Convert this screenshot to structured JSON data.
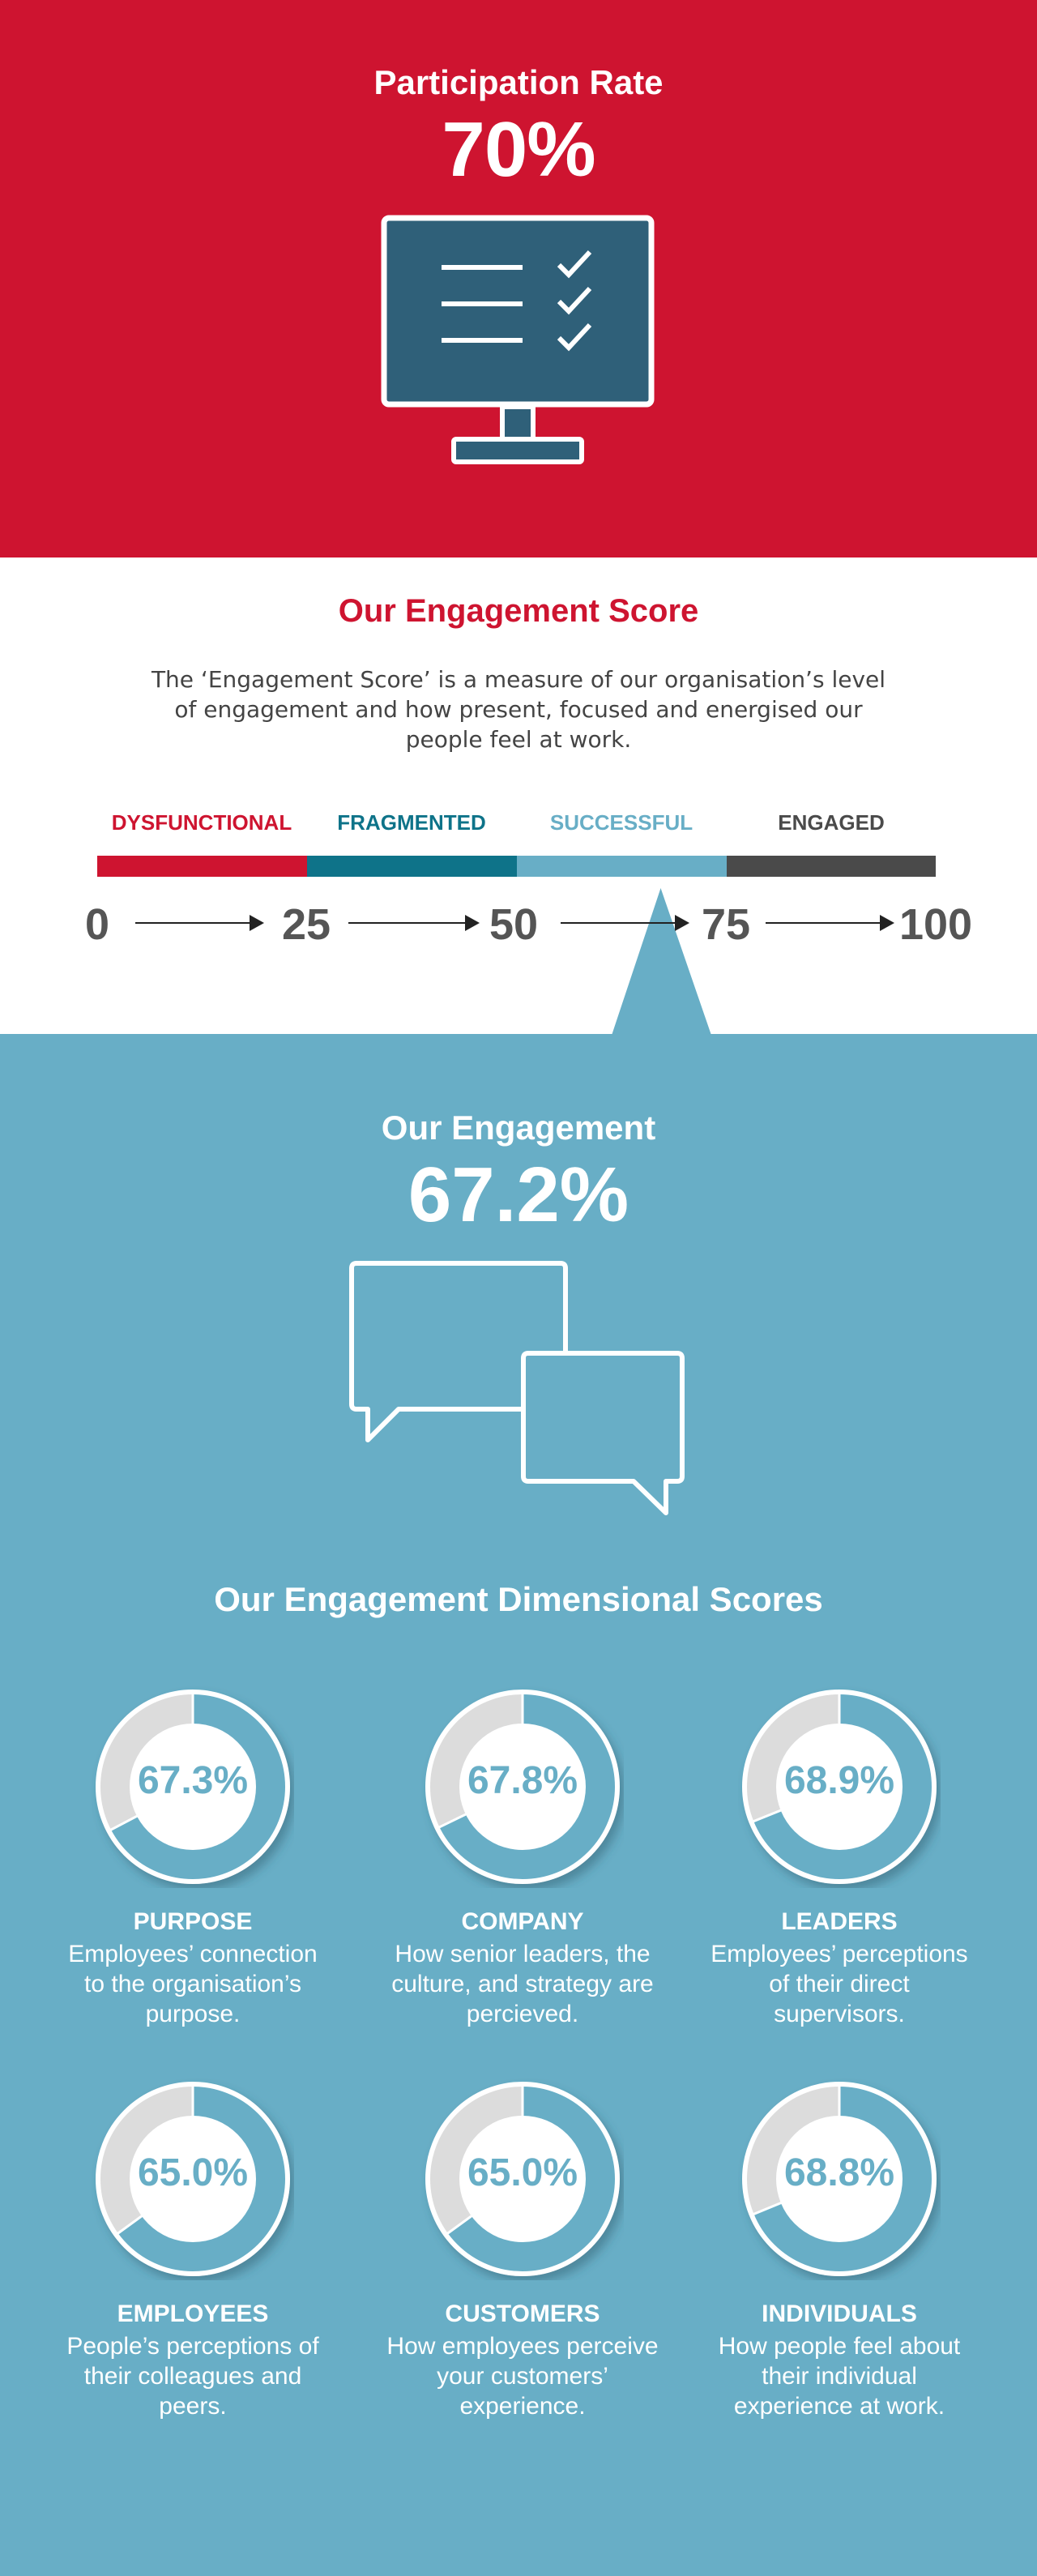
{
  "participation": {
    "title": "Participation Rate",
    "value": "70%",
    "icon": "checklist-monitor-icon"
  },
  "engagement_score": {
    "title": "Our Engagement Score",
    "description": "The ‘Engagement Score’ is a measure of our organisation’s level of engagement and how present, focused and energised our people feel at work.",
    "scale": [
      {
        "label": "DYSFUNCTIONAL",
        "color": "#CE1430"
      },
      {
        "label": "FRAGMENTED",
        "color": "#0E7389"
      },
      {
        "label": "SUCCESSFUL",
        "color": "#68AEC6"
      },
      {
        "label": "ENGAGED",
        "color": "#4A4A4A"
      }
    ],
    "ticks": [
      "0",
      "25",
      "50",
      "75",
      "100"
    ],
    "pointer_value": 67.2
  },
  "our_engagement": {
    "title": "Our Engagement",
    "value": "67.2%",
    "icon": "speech-bubbles-icon"
  },
  "dimensions": {
    "title": "Our Engagement Dimensional Scores",
    "items": [
      {
        "value": "67.3%",
        "percent": 67.3,
        "name": "PURPOSE",
        "description": "Employees’ connection to the organisation’s purpose."
      },
      {
        "value": "67.8%",
        "percent": 67.8,
        "name": "COMPANY",
        "description": "How senior leaders, the culture, and strategy are percieved."
      },
      {
        "value": "68.9%",
        "percent": 68.9,
        "name": "LEADERS",
        "description": "Employees’ perceptions of their direct supervisors."
      },
      {
        "value": "65.0%",
        "percent": 65.0,
        "name": "EMPLOYEES",
        "description": "People’s perceptions of their colleagues and peers."
      },
      {
        "value": "65.0%",
        "percent": 65.0,
        "name": "CUSTOMERS",
        "description": "How employees perceive your customers’ experience."
      },
      {
        "value": "68.8%",
        "percent": 68.8,
        "name": "INDIVIDUALS",
        "description": "How people feel about their individual experience at work."
      }
    ]
  },
  "colors": {
    "red": "#CE1430",
    "teal": "#0E7389",
    "blue": "#68AEC6",
    "dark": "#4A4A4A",
    "donut_rest": "#DCDCDC"
  }
}
